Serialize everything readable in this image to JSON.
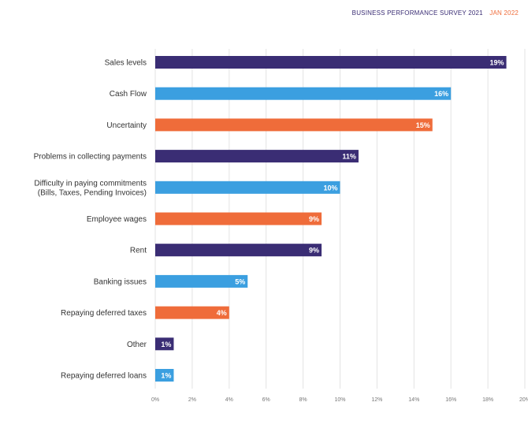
{
  "header": {
    "survey": "BUSINESS PERFORMANCE SURVEY 2021",
    "date": "JAN 2022"
  },
  "colors": {
    "purple": "#3a2d74",
    "blue": "#3b9fe0",
    "orange": "#ef6c3a",
    "survey_text": "#3a2d74",
    "date_text": "#ef6c3a"
  },
  "chart_data": {
    "type": "bar",
    "orientation": "horizontal",
    "categories": [
      [
        "Sales levels"
      ],
      [
        "Cash Flow"
      ],
      [
        "Uncertainty"
      ],
      [
        "Problems in collecting payments"
      ],
      [
        "Difficulty in paying commitments",
        "(Bills, Taxes, Pending Invoices)"
      ],
      [
        "Employee wages"
      ],
      [
        "Rent"
      ],
      [
        "Banking issues"
      ],
      [
        "Repaying deferred taxes"
      ],
      [
        "Other"
      ],
      [
        "Repaying deferred loans"
      ]
    ],
    "values": [
      19,
      16,
      15,
      11,
      10,
      9,
      9,
      5,
      4,
      1,
      1
    ],
    "value_labels": [
      "19%",
      "16%",
      "15%",
      "11%",
      "10%",
      "9%",
      "9%",
      "5%",
      "4%",
      "1%",
      "1%"
    ],
    "bar_colors": [
      "purple",
      "blue",
      "orange",
      "purple",
      "blue",
      "orange",
      "purple",
      "blue",
      "orange",
      "purple",
      "blue"
    ],
    "xlim": [
      0,
      20
    ],
    "xticks": [
      0,
      2,
      4,
      6,
      8,
      10,
      12,
      14,
      16,
      18,
      20
    ],
    "xtick_labels": [
      "0%",
      "2%",
      "4%",
      "6%",
      "8%",
      "10%",
      "12%",
      "14%",
      "16%",
      "18%",
      "20%"
    ],
    "grid": true,
    "title": "",
    "xlabel": "",
    "ylabel": ""
  }
}
